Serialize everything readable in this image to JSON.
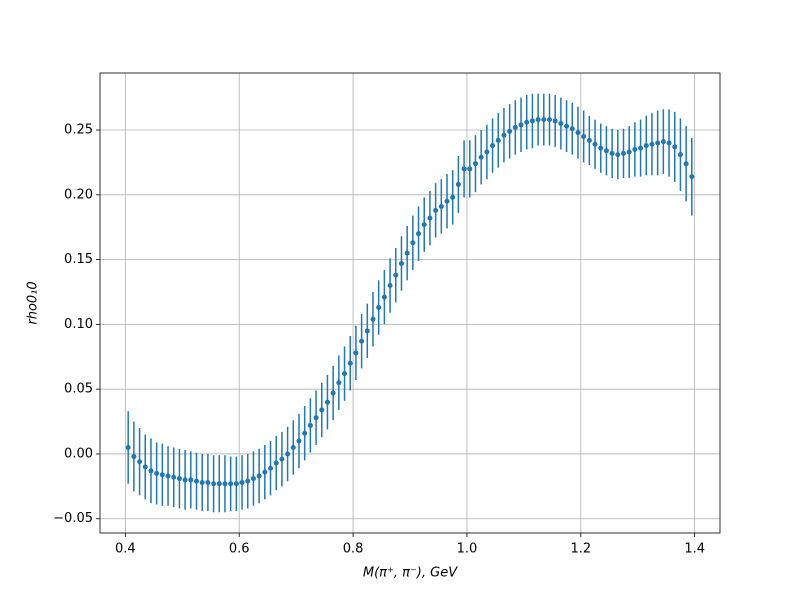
{
  "chart_data": {
    "type": "errorbar",
    "xlabel": "M(π⁺, π⁻), GeV",
    "ylabel": "rho0₁0",
    "color": "#1f77b4",
    "grid": true,
    "xlim": [
      0.3555,
      1.4445
    ],
    "ylim": [
      -0.061,
      0.294
    ],
    "xticks": [
      0.4,
      0.6,
      0.8,
      {
        "value": 1.0,
        "label": "1.0"
      },
      1.2,
      1.4
    ],
    "yticks": [
      {
        "value": -0.05,
        "label": "−0.05"
      },
      {
        "value": 0,
        "label": "0.00"
      },
      {
        "value": 0.05,
        "label": "0.05"
      },
      {
        "value": 0.1,
        "label": "0.10"
      },
      {
        "value": 0.15,
        "label": "0.15"
      },
      {
        "value": 0.2,
        "label": "0.20"
      },
      {
        "value": 0.25,
        "label": "0.25"
      }
    ],
    "x": [
      0.405,
      0.415,
      0.425,
      0.435,
      0.445,
      0.455,
      0.465,
      0.475,
      0.485,
      0.495,
      0.505,
      0.515,
      0.525,
      0.535,
      0.545,
      0.555,
      0.565,
      0.575,
      0.585,
      0.595,
      0.605,
      0.615,
      0.625,
      0.635,
      0.645,
      0.655,
      0.665,
      0.675,
      0.685,
      0.695,
      0.705,
      0.715,
      0.725,
      0.735,
      0.745,
      0.755,
      0.765,
      0.775,
      0.785,
      0.795,
      0.805,
      0.815,
      0.825,
      0.835,
      0.845,
      0.855,
      0.865,
      0.875,
      0.885,
      0.895,
      0.905,
      0.915,
      0.925,
      0.935,
      0.945,
      0.955,
      0.965,
      0.975,
      0.985,
      0.995,
      1.005,
      1.015,
      1.025,
      1.035,
      1.045,
      1.055,
      1.065,
      1.075,
      1.085,
      1.095,
      1.105,
      1.115,
      1.125,
      1.135,
      1.145,
      1.155,
      1.165,
      1.175,
      1.185,
      1.195,
      1.205,
      1.215,
      1.225,
      1.235,
      1.245,
      1.255,
      1.265,
      1.275,
      1.285,
      1.295,
      1.305,
      1.315,
      1.325,
      1.335,
      1.345,
      1.355,
      1.365,
      1.375,
      1.385,
      1.395
    ],
    "values": [
      0.005,
      -0.002,
      -0.006,
      -0.01,
      -0.013,
      -0.015,
      -0.016,
      -0.017,
      -0.018,
      -0.019,
      -0.02,
      -0.02,
      -0.021,
      -0.022,
      -0.022,
      -0.023,
      -0.023,
      -0.023,
      -0.023,
      -0.023,
      -0.022,
      -0.021,
      -0.019,
      -0.017,
      -0.014,
      -0.011,
      -0.007,
      -0.004,
      0.0,
      0.005,
      0.01,
      0.016,
      0.022,
      0.028,
      0.034,
      0.04,
      0.047,
      0.055,
      0.062,
      0.07,
      0.078,
      0.087,
      0.095,
      0.104,
      0.113,
      0.121,
      0.13,
      0.138,
      0.147,
      0.155,
      0.163,
      0.17,
      0.177,
      0.182,
      0.188,
      0.191,
      0.195,
      0.198,
      0.208,
      0.22,
      0.22,
      0.224,
      0.229,
      0.233,
      0.238,
      0.242,
      0.246,
      0.249,
      0.252,
      0.254,
      0.256,
      0.257,
      0.258,
      0.258,
      0.258,
      0.257,
      0.255,
      0.253,
      0.251,
      0.248,
      0.245,
      0.242,
      0.239,
      0.236,
      0.234,
      0.232,
      0.231,
      0.232,
      0.233,
      0.235,
      0.236,
      0.238,
      0.239,
      0.24,
      0.241,
      0.24,
      0.237,
      0.231,
      0.224,
      0.214
    ],
    "errors": [
      0.028,
      0.027,
      0.026,
      0.025,
      0.025,
      0.024,
      0.024,
      0.023,
      0.023,
      0.023,
      0.023,
      0.022,
      0.022,
      0.022,
      0.022,
      0.022,
      0.022,
      0.022,
      0.021,
      0.021,
      0.021,
      0.021,
      0.021,
      0.021,
      0.021,
      0.021,
      0.021,
      0.021,
      0.021,
      0.021,
      0.021,
      0.021,
      0.021,
      0.021,
      0.021,
      0.021,
      0.021,
      0.021,
      0.021,
      0.021,
      0.021,
      0.021,
      0.021,
      0.021,
      0.021,
      0.021,
      0.021,
      0.021,
      0.021,
      0.021,
      0.021,
      0.021,
      0.021,
      0.021,
      0.021,
      0.021,
      0.021,
      0.021,
      0.022,
      0.022,
      0.022,
      0.022,
      0.021,
      0.021,
      0.021,
      0.021,
      0.021,
      0.021,
      0.021,
      0.021,
      0.021,
      0.021,
      0.02,
      0.02,
      0.02,
      0.02,
      0.02,
      0.02,
      0.02,
      0.02,
      0.02,
      0.019,
      0.019,
      0.019,
      0.019,
      0.019,
      0.019,
      0.019,
      0.02,
      0.021,
      0.022,
      0.023,
      0.024,
      0.025,
      0.025,
      0.026,
      0.027,
      0.028,
      0.029,
      0.03
    ]
  }
}
